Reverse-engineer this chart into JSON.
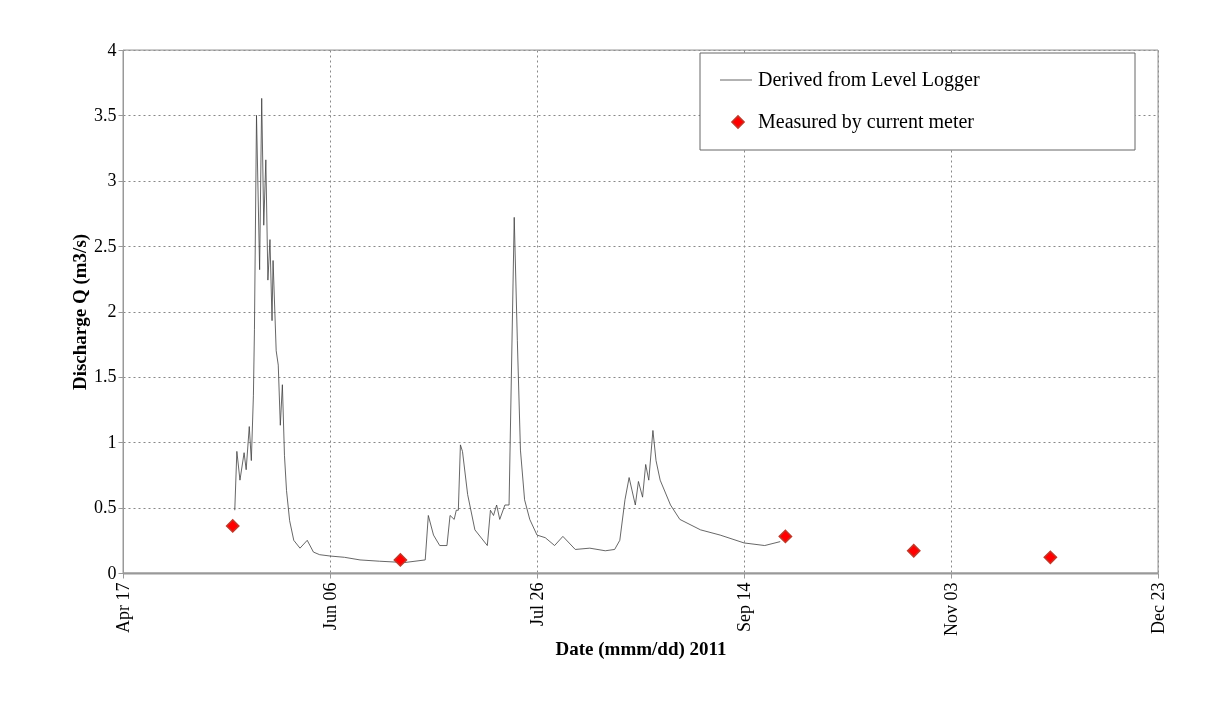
{
  "chart_data": {
    "type": "line",
    "xlabel": "Date (mmm/dd) 2011",
    "ylabel": "Discharge Q (m3/s)",
    "xlim": [
      "2011-04-17",
      "2011-12-23"
    ],
    "xticks": [
      {
        "value": "2011-04-17",
        "label": "Apr 17"
      },
      {
        "value": "2011-06-06",
        "label": "Jun 06"
      },
      {
        "value": "2011-07-26",
        "label": "Jul 26"
      },
      {
        "value": "2011-09-14",
        "label": "Sep 14"
      },
      {
        "value": "2011-11-03",
        "label": "Nov 03"
      },
      {
        "value": "2011-12-23",
        "label": "Dec 23"
      }
    ],
    "ylim": [
      0,
      4
    ],
    "yticks": [
      0,
      0.5,
      1,
      1.5,
      2,
      2.5,
      3,
      3.5,
      4
    ],
    "grid": true,
    "legend": "top right",
    "series": [
      {
        "name": "Derived from Level Logger",
        "type": "line",
        "color": "#404040",
        "line_style": "solid",
        "marker": "none",
        "x": [
          "2011-05-14T00:00",
          "2011-05-14T12:00",
          "2011-05-15T06:00",
          "2011-05-16T06:00",
          "2011-05-16T18:00",
          "2011-05-17T12:00",
          "2011-05-18T00:00",
          "2011-05-18T12:00",
          "2011-05-18T18:00",
          "2011-05-19T06:00",
          "2011-05-20T00:00",
          "2011-05-20T12:00",
          "2011-05-21T00:00",
          "2011-05-21T12:00",
          "2011-05-22T00:00",
          "2011-05-22T12:00",
          "2011-05-23T00:00",
          "2011-05-23T06:00",
          "2011-05-24T00:00",
          "2011-05-24T12:00",
          "2011-05-25T00:00",
          "2011-05-25T12:00",
          "2011-05-26T00:00",
          "2011-05-26T12:00",
          "2011-05-27T06:00",
          "2011-05-28T06:00",
          "2011-05-29T18:00",
          "2011-05-31T12:00",
          "2011-06-02T00:00",
          "2011-06-03T12:00",
          "2011-06-06T00:00",
          "2011-06-09T12:00",
          "2011-06-13T06:00",
          "2011-06-18T00:00",
          "2011-06-24T00:00",
          "2011-06-29T00:00",
          "2011-06-29T18:00",
          "2011-07-01T00:00",
          "2011-07-02T12:00",
          "2011-07-04T06:00",
          "2011-07-05T00:00",
          "2011-07-06T00:00",
          "2011-07-06T12:00",
          "2011-07-07T00:00",
          "2011-07-07T12:00",
          "2011-07-08T00:00",
          "2011-07-09T06:00",
          "2011-07-11T00:00",
          "2011-07-14T00:00",
          "2011-07-14T18:00",
          "2011-07-15T12:00",
          "2011-07-16T06:00",
          "2011-07-17T00:00",
          "2011-07-18T06:00",
          "2011-07-19T06:00",
          "2011-07-20T12:00",
          "2011-07-21T06:00",
          "2011-07-22T00:00",
          "2011-07-23T00:00",
          "2011-07-24T06:00",
          "2011-07-26T00:00",
          "2011-07-28T00:00",
          "2011-07-30T06:00",
          "2011-08-01T06:00",
          "2011-08-04T06:00",
          "2011-08-07T18:00",
          "2011-08-11T12:00",
          "2011-08-13T18:00",
          "2011-08-15T00:00",
          "2011-08-16T06:00",
          "2011-08-17T06:00",
          "2011-08-18T18:00",
          "2011-08-19T12:00",
          "2011-08-20T12:00",
          "2011-08-21T06:00",
          "2011-08-22T00:00",
          "2011-08-23T00:00",
          "2011-08-23T18:00",
          "2011-08-24T18:00",
          "2011-08-27T06:00",
          "2011-08-29T12:00",
          "2011-09-03T12:00",
          "2011-09-08T06:00",
          "2011-09-14T00:00",
          "2011-09-19T00:00",
          "2011-09-22T18:00"
        ],
        "values": [
          0.48,
          0.93,
          0.71,
          0.92,
          0.79,
          1.12,
          0.86,
          1.36,
          1.86,
          3.5,
          2.32,
          3.63,
          2.66,
          3.16,
          2.24,
          2.55,
          1.93,
          2.39,
          1.7,
          1.59,
          1.13,
          1.44,
          0.9,
          0.63,
          0.4,
          0.25,
          0.19,
          0.25,
          0.16,
          0.14,
          0.13,
          0.12,
          0.1,
          0.09,
          0.08,
          0.1,
          0.44,
          0.29,
          0.21,
          0.21,
          0.44,
          0.41,
          0.48,
          0.48,
          0.98,
          0.93,
          0.6,
          0.33,
          0.21,
          0.48,
          0.44,
          0.52,
          0.41,
          0.52,
          0.52,
          2.72,
          1.78,
          0.94,
          0.56,
          0.41,
          0.29,
          0.27,
          0.21,
          0.28,
          0.18,
          0.19,
          0.17,
          0.18,
          0.25,
          0.56,
          0.73,
          0.52,
          0.7,
          0.58,
          0.83,
          0.71,
          1.09,
          0.86,
          0.71,
          0.52,
          0.41,
          0.33,
          0.29,
          0.23,
          0.21,
          0.24
        ]
      },
      {
        "name": "Measured by current meter",
        "type": "scatter",
        "color": "#ff0000",
        "marker": "diamond",
        "x": [
          "2011-05-13T12:00",
          "2011-06-23T00:00",
          "2011-09-24T00:00",
          "2011-10-25T00:00",
          "2011-11-27T00:00"
        ],
        "values": [
          0.36,
          0.1,
          0.28,
          0.17,
          0.12
        ]
      }
    ]
  }
}
